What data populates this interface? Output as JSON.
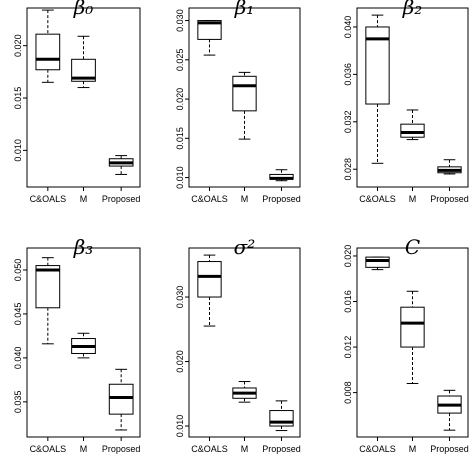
{
  "chart_data": [
    {
      "type": "box",
      "title": "β₀",
      "categories": [
        "C&OALS",
        "M",
        "Proposed"
      ],
      "ylim": [
        0.0065,
        0.0236
      ],
      "yticks": [
        {
          "v": 0.01,
          "t": "0.010"
        },
        {
          "v": 0.015,
          "t": "0.015"
        },
        {
          "v": 0.02,
          "t": "0.020"
        }
      ],
      "boxes": [
        {
          "min": 0.0165,
          "q1": 0.0177,
          "median": 0.0187,
          "q3": 0.0211,
          "max": 0.0234
        },
        {
          "min": 0.016,
          "q1": 0.0166,
          "median": 0.0169,
          "q3": 0.0187,
          "max": 0.0209
        },
        {
          "min": 0.0077,
          "q1": 0.0085,
          "median": 0.0088,
          "q3": 0.0092,
          "max": 0.0095
        }
      ]
    },
    {
      "type": "box",
      "title": "β₁",
      "categories": [
        "C&OALS",
        "M",
        "Proposed"
      ],
      "ylim": [
        0.0088,
        0.0316
      ],
      "yticks": [
        {
          "v": 0.01,
          "t": "0.010"
        },
        {
          "v": 0.015,
          "t": "0.015"
        },
        {
          "v": 0.02,
          "t": "0.020"
        },
        {
          "v": 0.025,
          "t": "0.025"
        },
        {
          "v": 0.03,
          "t": "0.030"
        }
      ],
      "boxes": [
        {
          "min": 0.0256,
          "q1": 0.0276,
          "median": 0.0297,
          "q3": 0.03,
          "max": 0.03
        },
        {
          "min": 0.0149,
          "q1": 0.0185,
          "median": 0.0217,
          "q3": 0.0229,
          "max": 0.0234
        },
        {
          "min": 0.0096,
          "q1": 0.0098,
          "median": 0.0099,
          "q3": 0.0104,
          "max": 0.011
        }
      ]
    },
    {
      "type": "box",
      "title": "β₂",
      "categories": [
        "C&OALS",
        "M",
        "Proposed"
      ],
      "ylim": [
        0.0265,
        0.0416
      ],
      "yticks": [
        {
          "v": 0.028,
          "t": "0.028"
        },
        {
          "v": 0.032,
          "t": "0.032"
        },
        {
          "v": 0.036,
          "t": "0.036"
        },
        {
          "v": 0.04,
          "t": "0.040"
        }
      ],
      "boxes": [
        {
          "min": 0.0285,
          "q1": 0.0335,
          "median": 0.039,
          "q3": 0.04,
          "max": 0.041
        },
        {
          "min": 0.0305,
          "q1": 0.0307,
          "median": 0.0311,
          "q3": 0.0318,
          "max": 0.033
        },
        {
          "min": 0.0276,
          "q1": 0.0277,
          "median": 0.0279,
          "q3": 0.0282,
          "max": 0.0288
        }
      ]
    },
    {
      "type": "box",
      "title": "β₃",
      "categories": [
        "C&OALS",
        "M",
        "Proposed"
      ],
      "ylim": [
        0.031,
        0.0525
      ],
      "yticks": [
        {
          "v": 0.035,
          "t": "0.035"
        },
        {
          "v": 0.04,
          "t": "0.040"
        },
        {
          "v": 0.045,
          "t": "0.045"
        },
        {
          "v": 0.05,
          "t": "0.050"
        }
      ],
      "boxes": [
        {
          "min": 0.0416,
          "q1": 0.0457,
          "median": 0.05,
          "q3": 0.0505,
          "max": 0.0514
        },
        {
          "min": 0.04,
          "q1": 0.0405,
          "median": 0.0413,
          "q3": 0.0422,
          "max": 0.0428
        },
        {
          "min": 0.0318,
          "q1": 0.0336,
          "median": 0.0355,
          "q3": 0.037,
          "max": 0.0387
        }
      ]
    },
    {
      "type": "box",
      "title": "σ²",
      "categories": [
        "C&OALS",
        "M",
        "Proposed"
      ],
      "ylim": [
        0.0083,
        0.0376
      ],
      "yticks": [
        {
          "v": 0.01,
          "t": "0.010"
        },
        {
          "v": 0.02,
          "t": "0.020"
        },
        {
          "v": 0.03,
          "t": "0.030"
        }
      ],
      "boxes": [
        {
          "min": 0.0255,
          "q1": 0.03,
          "median": 0.0332,
          "q3": 0.0355,
          "max": 0.0365
        },
        {
          "min": 0.0137,
          "q1": 0.0143,
          "median": 0.0151,
          "q3": 0.0159,
          "max": 0.0169
        },
        {
          "min": 0.0093,
          "q1": 0.01,
          "median": 0.0106,
          "q3": 0.0124,
          "max": 0.0139
        }
      ]
    },
    {
      "type": "box",
      "title": "C",
      "categories": [
        "C&OALS",
        "M",
        "Proposed"
      ],
      "ylim": [
        0.0041,
        0.0207
      ],
      "yticks": [
        {
          "v": 0.008,
          "t": "0.008"
        },
        {
          "v": 0.012,
          "t": "0.012"
        },
        {
          "v": 0.016,
          "t": "0.016"
        },
        {
          "v": 0.02,
          "t": "0.020"
        }
      ],
      "boxes": [
        {
          "min": 0.0188,
          "q1": 0.019,
          "median": 0.0196,
          "q3": 0.0199,
          "max": 0.0199
        },
        {
          "min": 0.0088,
          "q1": 0.012,
          "median": 0.0141,
          "q3": 0.0155,
          "max": 0.0169
        },
        {
          "min": 0.0047,
          "q1": 0.0062,
          "median": 0.0069,
          "q3": 0.0077,
          "max": 0.0082
        }
      ]
    }
  ]
}
